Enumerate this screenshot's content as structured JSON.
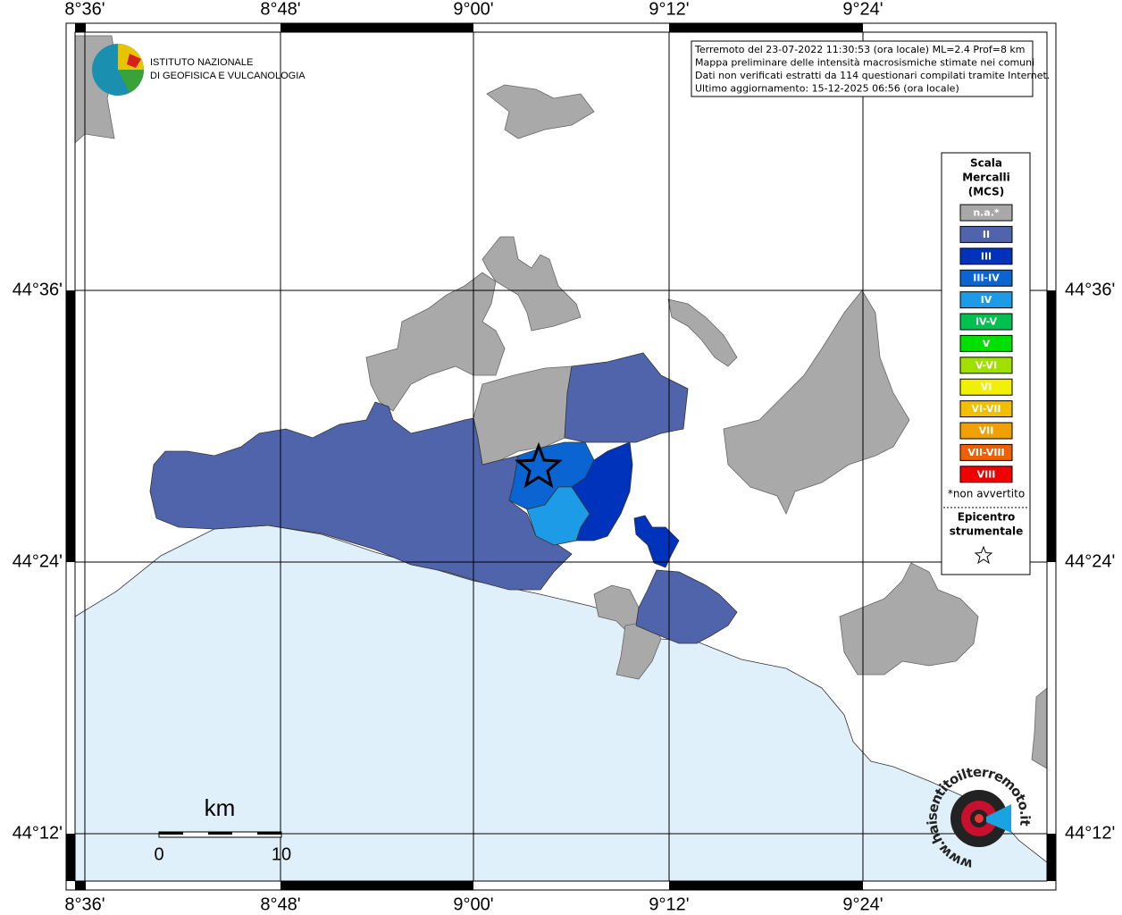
{
  "map": {
    "graticule": {
      "longitudes": [
        "8°36'",
        "8°48'",
        "9°00'",
        "9°12'",
        "9°24'"
      ],
      "latitudes": [
        "44°36'",
        "44°24'",
        "44°12'"
      ]
    },
    "logo": {
      "line1": "ISTITUTO NAZIONALE",
      "line2": "DI GEOFISICA E VULCANOLOGIA"
    },
    "info": [
      "Terremoto del 23-07-2022 11:30:53 (ora locale) ML=2.4 Prof=8 km",
      "Mappa preliminare delle intensità macrosismiche stimate nei comuni",
      "Dati non verificati estratti da 114 questionari compilati tramite Internet.",
      "Ultimo aggiornamento: 15-12-2025 06:56 (ora locale)"
    ],
    "legend": {
      "title": [
        "Scala",
        "Mercalli",
        "(MCS)"
      ],
      "items": [
        {
          "label": "n.a.*",
          "color": "#a8a8a8"
        },
        {
          "label": "II",
          "color": "#5064ac"
        },
        {
          "label": "III",
          "color": "#0033bb"
        },
        {
          "label": "III-IV",
          "color": "#0a64d2"
        },
        {
          "label": "IV",
          "color": "#1e9be6"
        },
        {
          "label": "IV-V",
          "color": "#00c050"
        },
        {
          "label": "V",
          "color": "#00e000"
        },
        {
          "label": "V-VI",
          "color": "#a0e000"
        },
        {
          "label": "VI",
          "color": "#f0f000"
        },
        {
          "label": "VI-VII",
          "color": "#f0c000"
        },
        {
          "label": "VII",
          "color": "#f0a000"
        },
        {
          "label": "VII-VIII",
          "color": "#f06000"
        },
        {
          "label": "VIII",
          "color": "#f00000"
        }
      ],
      "note": "*non avvertito",
      "epicenter": [
        "Epicentro",
        "strumentale"
      ]
    },
    "scale_bar": {
      "unit": "km",
      "start": "0",
      "end": "10"
    },
    "hsit_logo": "www.haisentitoilterremoto.it"
  }
}
